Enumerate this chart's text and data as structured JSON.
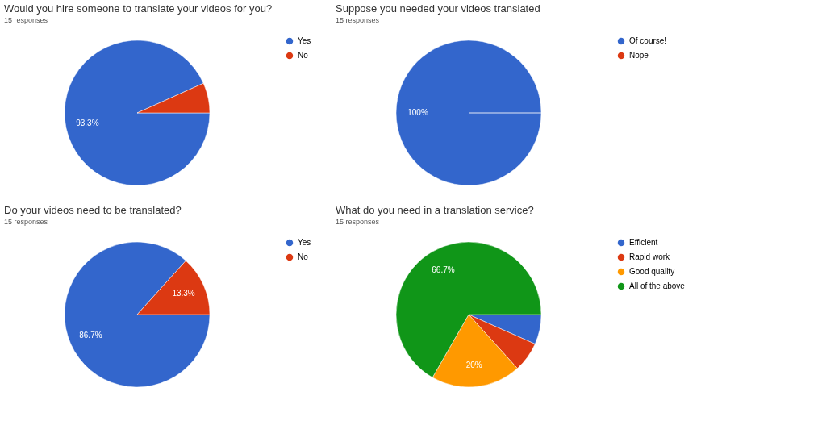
{
  "chart_data": [
    {
      "type": "pie",
      "title": "Would you hire someone to translate your videos for you?",
      "subtitle": "15 responses",
      "categories": [
        "Yes",
        "No"
      ],
      "values": [
        93.3,
        6.7
      ],
      "colors": [
        "#3366cc",
        "#dc3912"
      ],
      "value_labels": [
        "93.3%",
        null
      ],
      "legend": "right"
    },
    {
      "type": "pie",
      "title": "Suppose you needed your videos translated",
      "subtitle": "15 responses",
      "categories": [
        "Of course!",
        "Nope"
      ],
      "values": [
        100,
        0
      ],
      "colors": [
        "#3366cc",
        "#dc3912"
      ],
      "value_labels": [
        "100%",
        null
      ],
      "legend": "right"
    },
    {
      "type": "pie",
      "title": "Do your videos need to be translated?",
      "subtitle": "15 responses",
      "categories": [
        "Yes",
        "No"
      ],
      "values": [
        86.7,
        13.3
      ],
      "colors": [
        "#3366cc",
        "#dc3912"
      ],
      "value_labels": [
        "86.7%",
        "13.3%"
      ],
      "legend": "right"
    },
    {
      "type": "pie",
      "title": "What do you need in a translation service?",
      "subtitle": "15 responses",
      "categories": [
        "Efficient",
        "Rapid work",
        "Good quality",
        "All of the above"
      ],
      "values": [
        6.65,
        6.65,
        20,
        66.7
      ],
      "colors": [
        "#3366cc",
        "#dc3912",
        "#ff9900",
        "#109618"
      ],
      "value_labels": [
        null,
        null,
        "20%",
        "66.7%"
      ],
      "legend": "right"
    }
  ]
}
